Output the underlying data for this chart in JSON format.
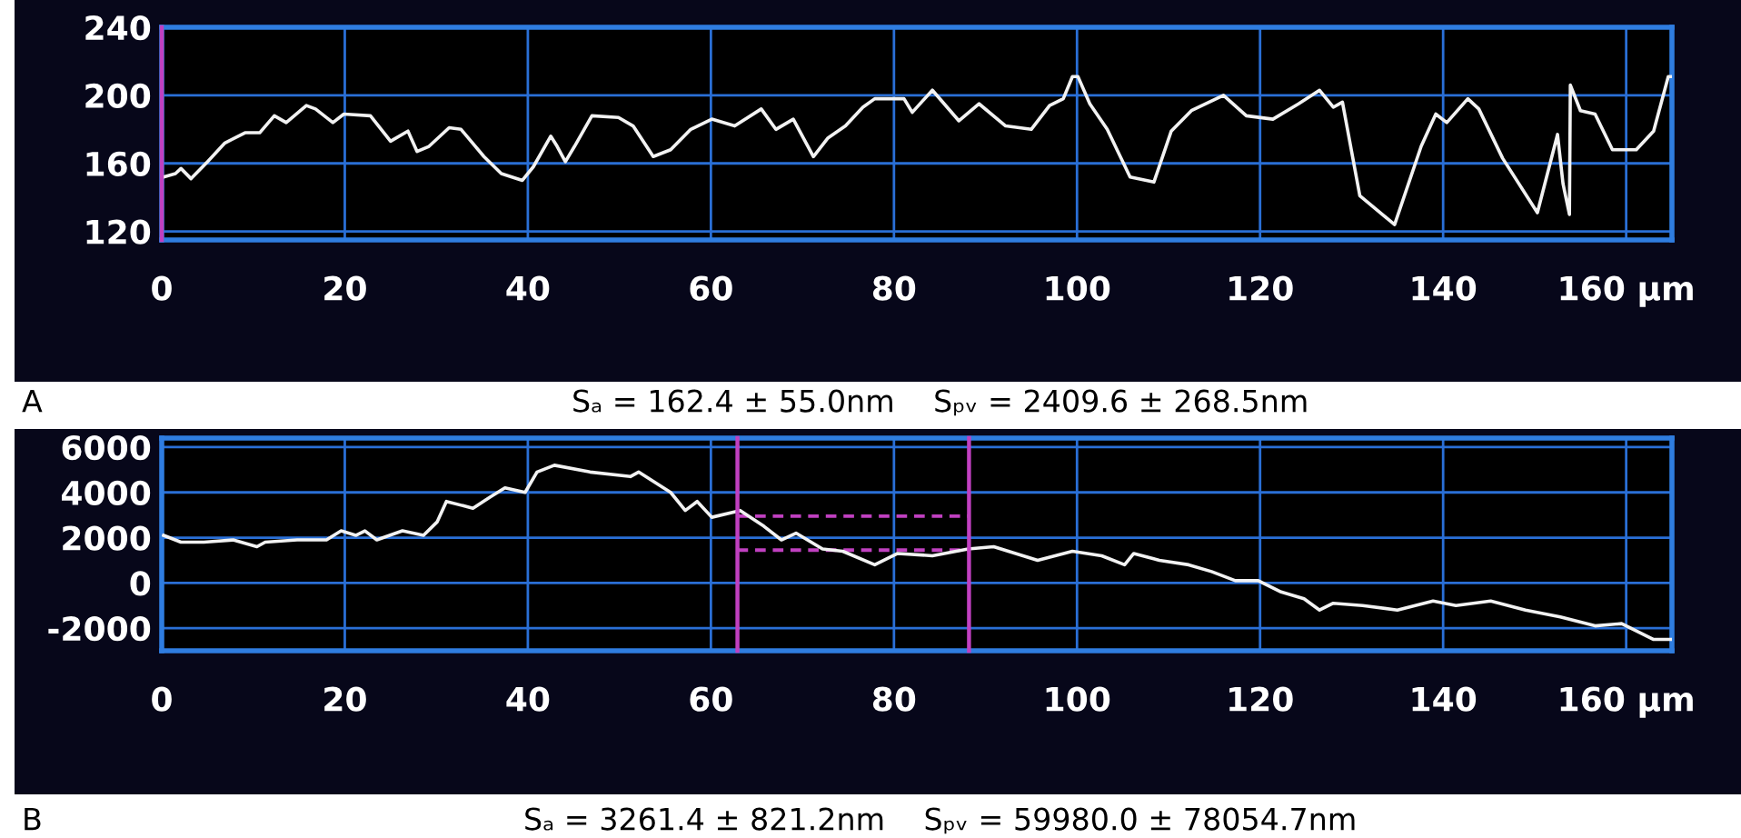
{
  "chart_data": [
    {
      "type": "line",
      "x": [
        0.2,
        1.5,
        2.1,
        3.2,
        5,
        6.9,
        9.1,
        10.7,
        12.3,
        13.6,
        15.8,
        16.8,
        18.7,
        19.9,
        22.8,
        25,
        26.9,
        27.9,
        29.2,
        31.4,
        32.7,
        35.2,
        37.1,
        39.4,
        40.6,
        42.5,
        43.2,
        44.1,
        45.1,
        47,
        49.9,
        51.5,
        53.7,
        55.6,
        57.8,
        60.1,
        62.6,
        65.5,
        67.1,
        69,
        71.2,
        72.8,
        74.7,
        76.6,
        77.9,
        81.1,
        82,
        84.2,
        87.1,
        89.3,
        92.2,
        95,
        97,
        98.5,
        99.5,
        100.1,
        101.4,
        103.3,
        105.8,
        108.4,
        110.3,
        112.5,
        116,
        118.5,
        121.4,
        124.2,
        126.5,
        128,
        129,
        130.9,
        134.7,
        137.6,
        139.2,
        140.4,
        142.7,
        143.9,
        146.5,
        150.3,
        152.5,
        153.1,
        153.8,
        153.9,
        155,
        156.6,
        158.5,
        161.1,
        163,
        164.6,
        165
      ],
      "series": [
        {
          "color": "#f2f2f2",
          "values": [
            152,
            154,
            157,
            151,
            161,
            172,
            178,
            178,
            188,
            184,
            194,
            192,
            184,
            189,
            188,
            173,
            179,
            167,
            170,
            181,
            180,
            164,
            154,
            150,
            158,
            176,
            170,
            161,
            170,
            188,
            187,
            182,
            164,
            168,
            180,
            186,
            182,
            192,
            180,
            186,
            164,
            175,
            182,
            193,
            198,
            198,
            190,
            203,
            185,
            195,
            182,
            180,
            194,
            198,
            211,
            211,
            195,
            180,
            152,
            149,
            179,
            191,
            200,
            188,
            186,
            195,
            203,
            193,
            196,
            141,
            124,
            170,
            189,
            184,
            198,
            192,
            163,
            131,
            177,
            148,
            130,
            206,
            191,
            189,
            168,
            168,
            179,
            211,
            211
          ]
        }
      ],
      "xlim": [
        0,
        165
      ],
      "ylim": [
        115,
        240
      ],
      "xticks": [
        0,
        20,
        40,
        60,
        80,
        100,
        120,
        140,
        {
          "value": 160,
          "label": "160 µm"
        }
      ],
      "yticks": [
        120,
        160,
        200,
        240
      ],
      "grid": true,
      "ref_lines": [
        {
          "axis": "x",
          "value": 0,
          "color": "#c040c0"
        }
      ],
      "annotations": [
        "A",
        "Sₐ = 162.4 ± 55.0nm    Sₚᵥ = 2409.6 ± 268.5nm"
      ]
    },
    {
      "type": "line",
      "x": [
        0.2,
        2.1,
        4.6,
        7.8,
        10.4,
        11.3,
        14.8,
        18,
        19.6,
        21.2,
        22.2,
        23.5,
        26.3,
        28.6,
        30.1,
        31.1,
        34,
        35.9,
        37.5,
        39.7,
        41,
        42.9,
        46.8,
        51.2,
        52.1,
        55.6,
        57.2,
        58.5,
        60.1,
        63.2,
        65.8,
        67.7,
        69.3,
        72.2,
        74.4,
        77.9,
        80.4,
        84.2,
        88.1,
        90.9,
        95.7,
        99.5,
        102.7,
        105.2,
        106.2,
        109,
        112.2,
        114.7,
        117.3,
        119.8,
        122.3,
        124.8,
        126.5,
        128,
        131.2,
        135,
        138.9,
        141.4,
        145.2,
        149,
        152.8,
        156.6,
        159.5,
        163,
        165
      ],
      "series": [
        {
          "color": "#f2f2f2",
          "values": [
            2100,
            1800,
            1800,
            1900,
            1600,
            1800,
            1900,
            1900,
            2300,
            2100,
            2300,
            1900,
            2300,
            2100,
            2700,
            3600,
            3300,
            3800,
            4200,
            4000,
            4900,
            5200,
            4900,
            4700,
            4900,
            4000,
            3200,
            3600,
            2900,
            3200,
            2500,
            1900,
            2200,
            1500,
            1400,
            800,
            1300,
            1200,
            1500,
            1600,
            1000,
            1400,
            1200,
            800,
            1300,
            1000,
            800,
            500,
            100,
            100,
            -400,
            -700,
            -1200,
            -900,
            -1000,
            -1200,
            -800,
            -1000,
            -800,
            -1200,
            -1500,
            -1900,
            -1800,
            -2500,
            -2500
          ]
        }
      ],
      "xlim": [
        0,
        165
      ],
      "ylim": [
        -3000,
        6400
      ],
      "xticks": [
        0,
        20,
        40,
        60,
        80,
        100,
        120,
        140,
        {
          "value": 160,
          "label": "160 µm"
        }
      ],
      "yticks": [
        -2000,
        0,
        2000,
        4000,
        6000
      ],
      "grid": true,
      "ref_lines": [
        {
          "axis": "x",
          "value": 62.9,
          "color": "#c040c0"
        },
        {
          "axis": "x",
          "value": 88.2,
          "color": "#c040c0"
        },
        {
          "axis": "y",
          "value": 2950,
          "color": "#c040c0",
          "line_style": "dashed"
        },
        {
          "axis": "y",
          "value": 1450,
          "color": "#c040c0",
          "line_style": "dashed"
        }
      ],
      "annotations": [
        "B",
        "Sₐ = 3261.4 ± 821.2nm    Sₚᵥ = 59980.0 ± 78054.7nm"
      ]
    }
  ]
}
